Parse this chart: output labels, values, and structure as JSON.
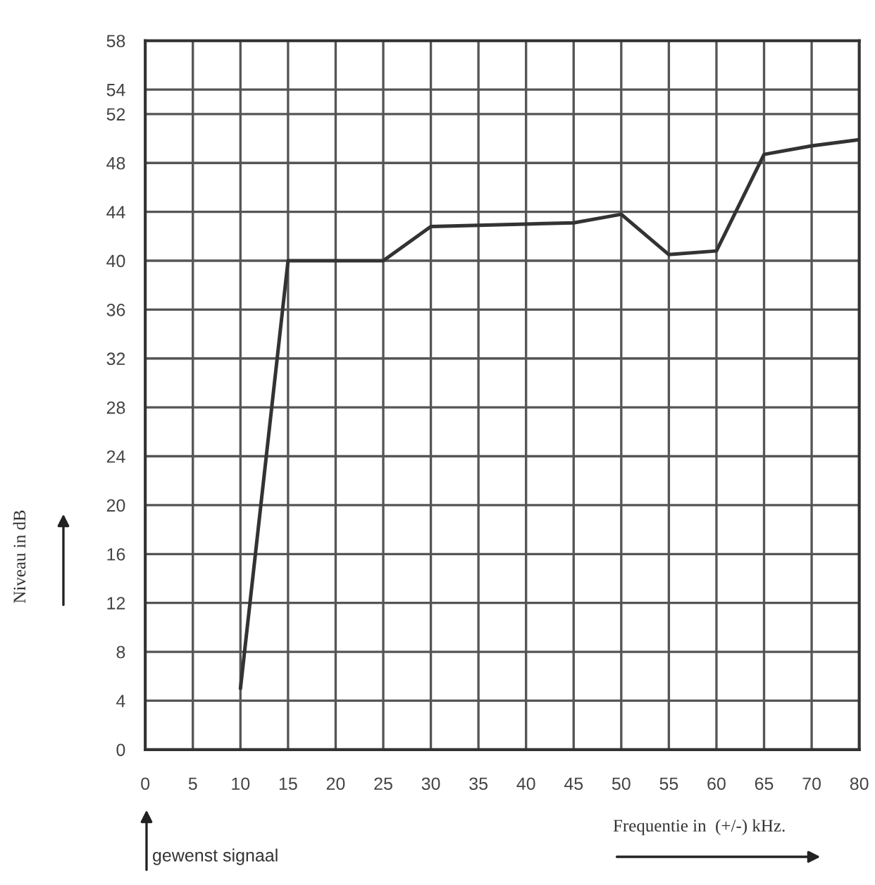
{
  "chart_data": {
    "type": "line",
    "xlabel": "Frequentie in  (+/-) kHz.",
    "ylabel": "Niveau in dB",
    "annotations": [
      "gewenst signaal"
    ],
    "categories": [
      "0",
      "5",
      "10",
      "15",
      "20",
      "25",
      "30",
      "35",
      "40",
      "45",
      "50",
      "55",
      "60",
      "65",
      "70",
      "80"
    ],
    "series": [
      {
        "color": "#333333",
        "values": [
          null,
          null,
          5,
          40,
          40,
          40,
          42.8,
          42.9,
          43,
          43.1,
          43.8,
          40.5,
          40.8,
          48.7,
          49.4,
          49.9
        ]
      }
    ],
    "ylim": [
      0,
      58
    ],
    "yticks": [
      0,
      4,
      8,
      12,
      16,
      20,
      24,
      28,
      32,
      36,
      40,
      44,
      48,
      52,
      54,
      58
    ],
    "grid": true,
    "marker": "none",
    "line_style": "solid"
  }
}
